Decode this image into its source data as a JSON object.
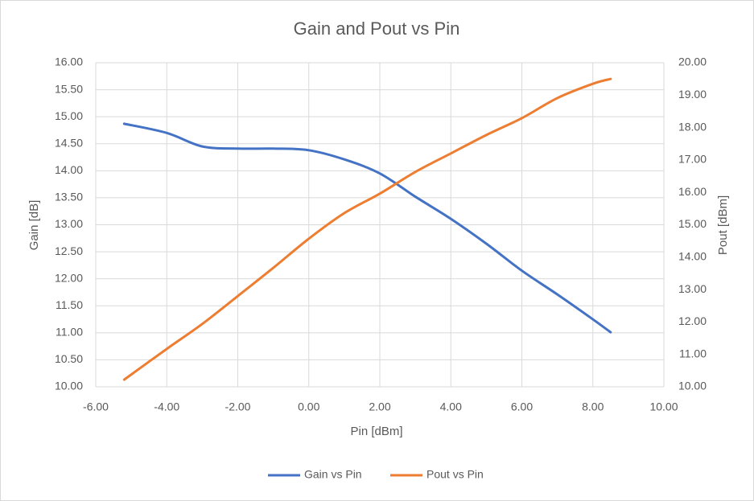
{
  "chart_data": {
    "type": "line",
    "title": "Gain and Pout vs Pin",
    "x_label": "Pin [dBm]",
    "y_label": "Gain [dB]",
    "y2_label": "Pout [dBm]",
    "x": [
      -5.2,
      -4,
      -3,
      -2,
      -1,
      0,
      1,
      2,
      3,
      4,
      5,
      6,
      7,
      8,
      8.5
    ],
    "series": [
      {
        "name": "Gain vs Pin",
        "color": "#4472c4",
        "axis": "y",
        "values": [
          14.87,
          14.7,
          14.45,
          14.41,
          14.41,
          14.38,
          14.21,
          13.95,
          13.52,
          13.11,
          12.65,
          12.15,
          11.71,
          11.25,
          11.01
        ]
      },
      {
        "name": "Pout vs Pin",
        "color": "#ed7d31",
        "axis": "y2",
        "values": [
          10.22,
          11.17,
          11.94,
          12.8,
          13.67,
          14.57,
          15.36,
          15.96,
          16.63,
          17.2,
          17.77,
          18.29,
          18.91,
          19.35,
          19.5
        ]
      }
    ],
    "xlim": [
      -6,
      10
    ],
    "xticks": [
      {
        "value": -6,
        "label": "-6.00"
      },
      {
        "value": -4,
        "label": "-4.00"
      },
      {
        "value": -2,
        "label": "-2.00"
      },
      {
        "value": 0,
        "label": "0.00"
      },
      {
        "value": 2,
        "label": "2.00"
      },
      {
        "value": 4,
        "label": "4.00"
      },
      {
        "value": 6,
        "label": "6.00"
      },
      {
        "value": 8,
        "label": "8.00"
      },
      {
        "value": 10,
        "label": "10.00"
      }
    ],
    "ylim": [
      10,
      16
    ],
    "yticks": [
      {
        "value": 10,
        "label": "10.00"
      },
      {
        "value": 10.5,
        "label": "10.50"
      },
      {
        "value": 11,
        "label": "11.00"
      },
      {
        "value": 11.5,
        "label": "11.50"
      },
      {
        "value": 12,
        "label": "12.00"
      },
      {
        "value": 12.5,
        "label": "12.50"
      },
      {
        "value": 13,
        "label": "13.00"
      },
      {
        "value": 13.5,
        "label": "13.50"
      },
      {
        "value": 14,
        "label": "14.00"
      },
      {
        "value": 14.5,
        "label": "14.50"
      },
      {
        "value": 15,
        "label": "15.00"
      },
      {
        "value": 15.5,
        "label": "15.50"
      },
      {
        "value": 16,
        "label": "16.00"
      }
    ],
    "y2lim": [
      10,
      20
    ],
    "y2ticks": [
      {
        "value": 10,
        "label": "10.00"
      },
      {
        "value": 11,
        "label": "11.00"
      },
      {
        "value": 12,
        "label": "12.00"
      },
      {
        "value": 13,
        "label": "13.00"
      },
      {
        "value": 14,
        "label": "14.00"
      },
      {
        "value": 15,
        "label": "15.00"
      },
      {
        "value": 16,
        "label": "16.00"
      },
      {
        "value": 17,
        "label": "17.00"
      },
      {
        "value": 18,
        "label": "18.00"
      },
      {
        "value": 19,
        "label": "19.00"
      },
      {
        "value": 20,
        "label": "20.00"
      }
    ],
    "grid": true,
    "legend": "bottom"
  }
}
